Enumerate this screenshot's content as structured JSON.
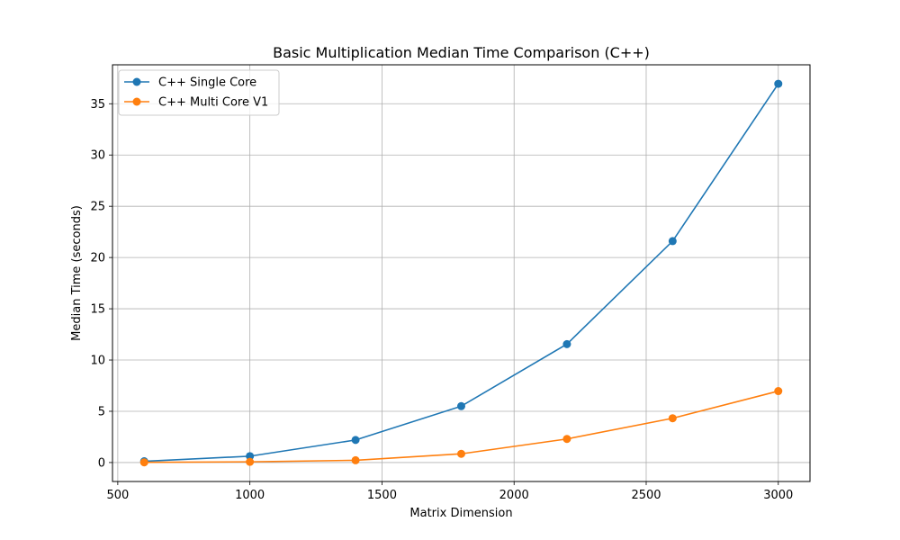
{
  "chart_data": {
    "type": "line",
    "title": "Basic Multiplication Median Time Comparison (C++)",
    "xlabel": "Matrix Dimension",
    "ylabel": "Median Time (seconds)",
    "x": [
      600,
      1000,
      1400,
      1800,
      2200,
      2600,
      3000
    ],
    "xlim": [
      480,
      3120
    ],
    "ylim": [
      -1.85,
      38.8
    ],
    "xticks": [
      500,
      1000,
      1500,
      2000,
      2500,
      3000
    ],
    "yticks": [
      0,
      5,
      10,
      15,
      20,
      25,
      30,
      35
    ],
    "grid": true,
    "legend_position": "top-left",
    "series": [
      {
        "name": "C++ Single Core",
        "color": "#1f77b4",
        "marker": "circle",
        "values": [
          0.12,
          0.62,
          2.2,
          5.5,
          11.55,
          21.6,
          36.95
        ]
      },
      {
        "name": "C++ Multi Core V1",
        "color": "#ff7f0e",
        "marker": "circle",
        "values": [
          0.02,
          0.07,
          0.22,
          0.85,
          2.3,
          4.32,
          6.97
        ]
      }
    ]
  }
}
